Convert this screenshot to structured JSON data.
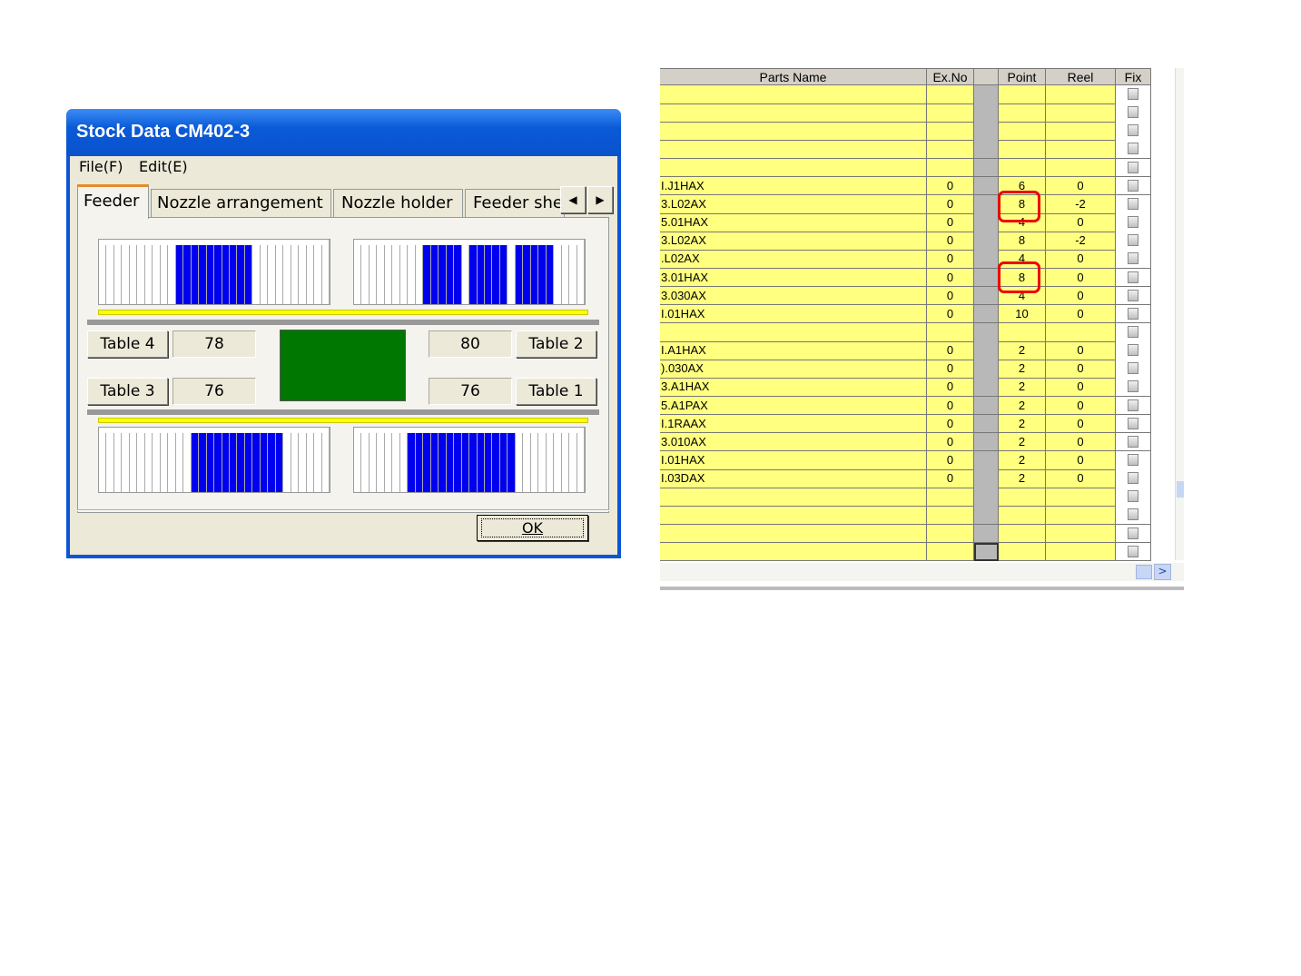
{
  "dialog": {
    "title": "Stock Data CM402-3",
    "menu": [
      "File(F)",
      "Edit(E)"
    ],
    "tabs": [
      "Feeder",
      "Nozzle arrangement",
      "Nozzle holder",
      "Feeder she"
    ],
    "tables": [
      {
        "label": "Table 4",
        "value": "78"
      },
      {
        "label": "Table 2",
        "value": "80"
      },
      {
        "label": "Table 3",
        "value": "76"
      },
      {
        "label": "Table 1",
        "value": "76"
      }
    ],
    "ok": "OK"
  },
  "grid": {
    "columns": [
      "Parts Name",
      "Ex.No",
      "Point",
      "Reel",
      "Fix"
    ],
    "rows": [
      null,
      null,
      null,
      null,
      null,
      [
        "I.J1HAX",
        "0",
        "6",
        "0"
      ],
      [
        "3.L02AX",
        "0",
        "8",
        "-2"
      ],
      [
        "5.01HAX",
        "0",
        "4",
        "0"
      ],
      [
        "3.L02AX",
        "0",
        "8",
        "-2"
      ],
      [
        ".L02AX",
        "0",
        "4",
        "0"
      ],
      [
        "3.01HAX",
        "0",
        "8",
        "0"
      ],
      [
        "3.030AX",
        "0",
        "4",
        "0"
      ],
      [
        "I.01HAX",
        "0",
        "10",
        "0"
      ],
      null,
      [
        "I.A1HAX",
        "0",
        "2",
        "0"
      ],
      [
        ").030AX",
        "0",
        "2",
        "0"
      ],
      [
        "3.A1HAX",
        "0",
        "2",
        "0"
      ],
      [
        "5.A1PAX",
        "0",
        "2",
        "0"
      ],
      [
        "I.1RAAX",
        "0",
        "2",
        "0"
      ],
      [
        "3.010AX",
        "0",
        "2",
        "0"
      ],
      [
        "I.01HAX",
        "0",
        "2",
        "0"
      ],
      [
        "I.03DAX",
        "0",
        "2",
        "0"
      ],
      null,
      null,
      null,
      null
    ]
  }
}
